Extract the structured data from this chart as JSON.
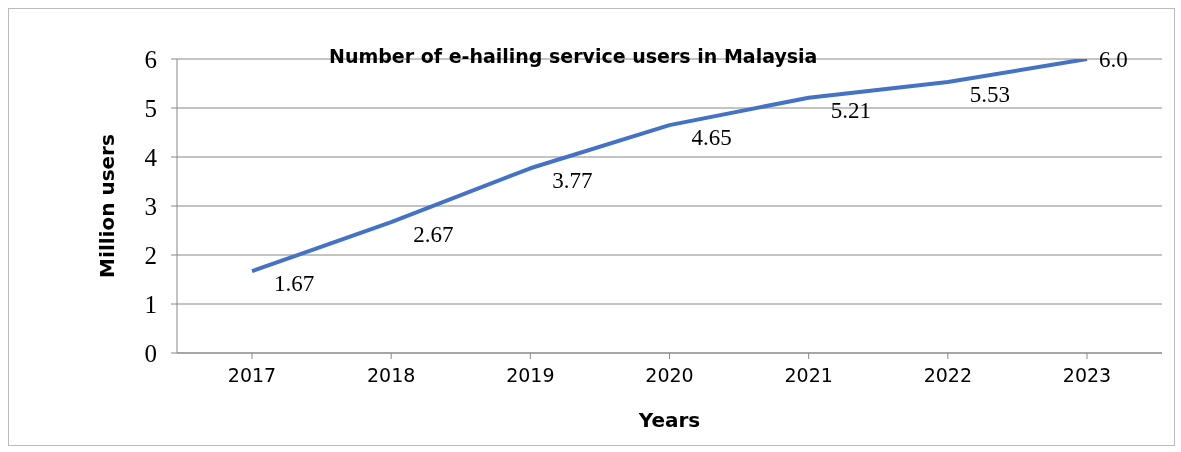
{
  "chart_data": {
    "type": "line",
    "title": "Number of e-hailing service users in Malaysia",
    "xlabel": "Years",
    "ylabel": "Million users",
    "categories": [
      "2017",
      "2018",
      "2019",
      "2020",
      "2021",
      "2022",
      "2023"
    ],
    "series": [
      {
        "color": "#4472c4",
        "values": [
          1.67,
          2.67,
          3.77,
          4.65,
          5.21,
          5.53,
          6.0
        ],
        "value_labels": [
          "1.67",
          "2.67",
          "3.77",
          "4.65",
          "5.21",
          "5.53",
          "6.0"
        ]
      }
    ],
    "ylim": [
      0,
      6
    ],
    "yticks": [
      0,
      1,
      2,
      3,
      4,
      5,
      6
    ],
    "grid": "y",
    "marker": "none",
    "line_style": "solid"
  }
}
